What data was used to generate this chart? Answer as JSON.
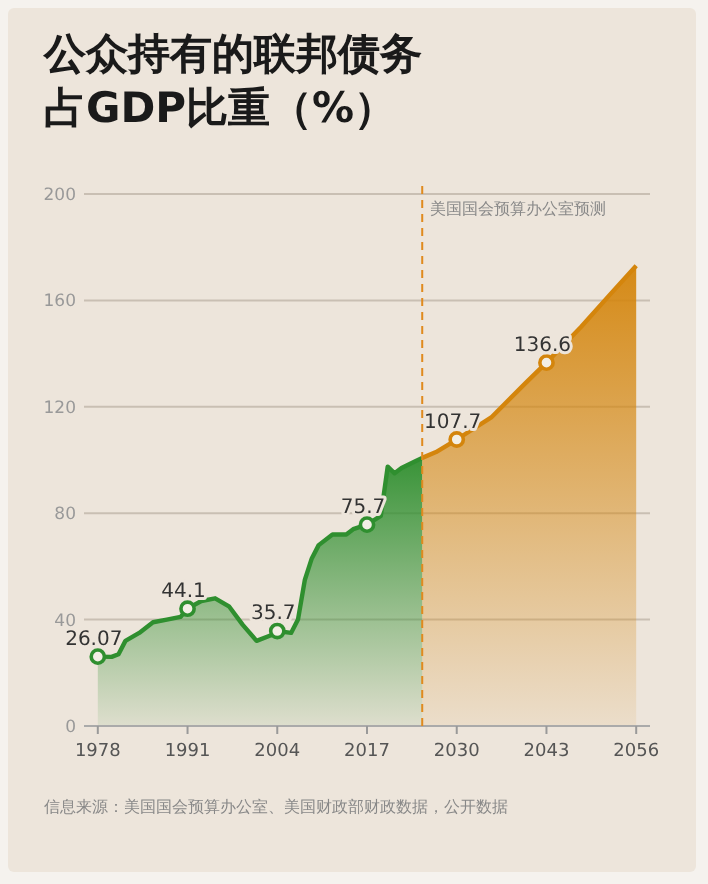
{
  "chart_data": {
    "type": "area",
    "title": "公众持有的联邦债务占GDP比重（%）",
    "xlim": [
      1976,
      2058
    ],
    "xticks": [
      1978,
      1991,
      2004,
      2017,
      2030,
      2043,
      2056
    ],
    "ylim": [
      0,
      200
    ],
    "yticks": [
      0,
      40,
      80,
      120,
      160,
      200
    ],
    "grid": "y",
    "series": [
      {
        "color": "#2f8f2f",
        "x": [
          1978,
          1980,
          1981,
          1982,
          1984,
          1986,
          1988,
          1990,
          1991,
          1993,
          1995,
          1997,
          1999,
          2001,
          2003,
          2004,
          2006,
          2007,
          2008,
          2009,
          2010,
          2012,
          2014,
          2015,
          2017,
          2019,
          2020,
          2021,
          2022,
          2024,
          2025
        ],
        "values": [
          26.07,
          26,
          27,
          32,
          35,
          39,
          40,
          41,
          44.1,
          47,
          48,
          45,
          38,
          32,
          34,
          35.7,
          35,
          40,
          55,
          63,
          68,
          72,
          72,
          74,
          75.7,
          79,
          97.5,
          95,
          97,
          99.5,
          100.8
        ],
        "value_labels": [
          "26.07",
          null,
          null,
          null,
          null,
          null,
          null,
          null,
          "44.1",
          null,
          null,
          null,
          null,
          null,
          null,
          "35.7",
          null,
          null,
          null,
          null,
          null,
          null,
          null,
          null,
          "75.7",
          null,
          null,
          null,
          null,
          null,
          null
        ]
      },
      {
        "color": "#d4850c",
        "x": [
          2025,
          2027,
          2030,
          2035,
          2040,
          2043,
          2048,
          2052,
          2056
        ],
        "values": [
          100.8,
          103,
          107.7,
          116,
          129,
          136.6,
          150,
          161.6,
          173
        ],
        "value_labels": [
          null,
          null,
          "107.7",
          null,
          null,
          "136.6",
          null,
          null,
          null
        ]
      }
    ],
    "ref_lines": [
      {
        "axis": "x",
        "value": 2025,
        "label": "美国国会预算办公室预测",
        "color": "#e08a1e",
        "line_style": "dashed"
      }
    ],
    "annotations": [
      "信息来源：美国国会预算办公室、美国财政部财政数据，公开数据"
    ]
  }
}
